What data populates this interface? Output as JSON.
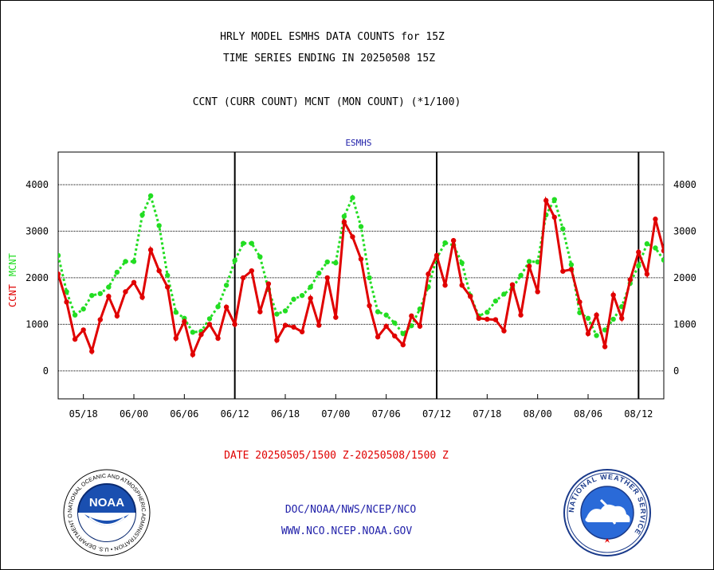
{
  "header": {
    "line1": "HRLY MODEL ESMHS DATA COUNTS for 15Z",
    "line2": "TIME SERIES ENDING IN 20250508 15Z",
    "line3": "CCNT (CURR COUNT) MCNT (MON COUNT) (*1/100)"
  },
  "footer": {
    "date_range": "DATE 20250505/1500 Z-20250508/1500 Z",
    "org": "DOC/NOAA/NWS/NCEP/NCO",
    "url": "WWW.NCO.NCEP.NOAA.GOV",
    "noaa_logo_text": "NOAA",
    "noaa_ring_text": "NATIONAL OCEANIC AND ATMOSPHERIC ADMINISTRATION • U.S. DEPARTMENT OF COMMERCE",
    "nws_ring_text": "NATIONAL WEATHER SERVICE"
  },
  "colors": {
    "ccnt": "#e00000",
    "mcnt": "#22dd22",
    "label_blue": "#2222aa",
    "accent_red": "#e00000"
  },
  "chart_data": {
    "type": "line",
    "title": "ESMHS",
    "ylabel_ccnt": "CCNT",
    "ylabel_mcnt": "MCNT",
    "ylim": [
      -600,
      4700
    ],
    "xlim": [
      0,
      72
    ],
    "yticks": [
      0,
      1000,
      2000,
      3000,
      4000
    ],
    "ytick_labels": [
      "0",
      "1000",
      "2000",
      "3000",
      "4000"
    ],
    "xticks": [
      {
        "x": 3,
        "label": "05/18"
      },
      {
        "x": 9,
        "label": "06/00"
      },
      {
        "x": 15,
        "label": "06/06"
      },
      {
        "x": 21,
        "label": "06/12"
      },
      {
        "x": 27,
        "label": "06/18"
      },
      {
        "x": 33,
        "label": "07/00"
      },
      {
        "x": 39,
        "label": "07/06"
      },
      {
        "x": 45,
        "label": "07/12"
      },
      {
        "x": 51,
        "label": "07/18"
      },
      {
        "x": 57,
        "label": "08/00"
      },
      {
        "x": 63,
        "label": "08/06"
      },
      {
        "x": 69,
        "label": "08/12"
      }
    ],
    "day_dividers": [
      21,
      45,
      69
    ],
    "grid": true,
    "series": [
      {
        "name": "CCNT",
        "style": "solid",
        "values": [
          2080,
          1480,
          680,
          880,
          420,
          1100,
          1600,
          1180,
          1700,
          1900,
          1580,
          2600,
          2150,
          1800,
          700,
          1060,
          350,
          780,
          1000,
          700,
          1370,
          1000,
          2000,
          2150,
          1270,
          1870,
          660,
          980,
          940,
          840,
          1560,
          980,
          2000,
          1150,
          3200,
          2880,
          2400,
          1400,
          730,
          960,
          750,
          560,
          1180,
          960,
          2080,
          2480,
          1840,
          2800,
          1840,
          1600,
          1130,
          1110,
          1100,
          860,
          1850,
          1200,
          2250,
          1700,
          3660,
          3300,
          2140,
          2180,
          1480,
          800,
          1200,
          520,
          1630,
          1130,
          1960,
          2550,
          2080,
          3260,
          2580
        ]
      },
      {
        "name": "MCNT",
        "style": "dotted",
        "values": [
          2480,
          1700,
          1200,
          1330,
          1620,
          1660,
          1800,
          2120,
          2350,
          2350,
          3350,
          3760,
          3120,
          2050,
          1260,
          1130,
          830,
          850,
          1120,
          1380,
          1840,
          2370,
          2740,
          2740,
          2450,
          1750,
          1220,
          1290,
          1540,
          1620,
          1800,
          2100,
          2340,
          2320,
          3320,
          3720,
          3100,
          2000,
          1270,
          1200,
          1030,
          800,
          970,
          1330,
          1800,
          2420,
          2750,
          2700,
          2320,
          1620,
          1180,
          1260,
          1500,
          1650,
          1780,
          2050,
          2350,
          2340,
          3350,
          3680,
          3050,
          2280,
          1250,
          1130,
          760,
          880,
          1110,
          1380,
          1880,
          2260,
          2730,
          2640,
          2380
        ]
      }
    ]
  }
}
